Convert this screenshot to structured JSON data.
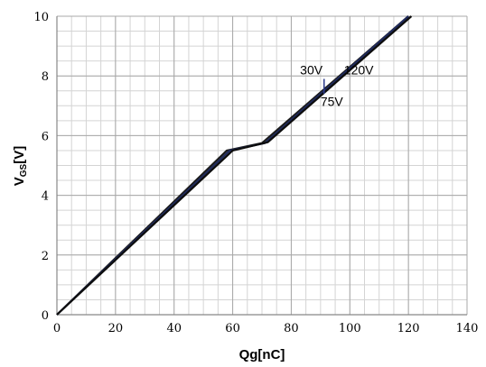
{
  "chart_data": {
    "type": "line",
    "xlabel": "Qg[nC]",
    "ylabel_main": "V",
    "ylabel_sub": "GS",
    "ylabel_unit": "[V]",
    "xlim": [
      0,
      140
    ],
    "ylim": [
      0,
      10
    ],
    "x_ticks": [
      0,
      20,
      40,
      60,
      80,
      100,
      120,
      140
    ],
    "y_ticks": [
      0,
      2,
      4,
      6,
      8,
      10
    ],
    "grid": true,
    "series": [
      {
        "name": "30V",
        "x": [
          0,
          58,
          70,
          120
        ],
        "y": [
          0,
          5.5,
          5.75,
          10
        ]
      },
      {
        "name": "75V",
        "x": [
          0,
          59,
          71,
          120
        ],
        "y": [
          0,
          5.5,
          5.75,
          10
        ]
      },
      {
        "name": "120V",
        "x": [
          0,
          60,
          72,
          121
        ],
        "y": [
          0,
          5.5,
          5.78,
          10
        ]
      }
    ],
    "annotations": [
      {
        "text": "30V",
        "x": 83,
        "y": 8.05
      },
      {
        "text": "120V",
        "x": 98,
        "y": 8.05
      },
      {
        "text": "75V",
        "x": 90,
        "y": 7.0
      }
    ]
  }
}
